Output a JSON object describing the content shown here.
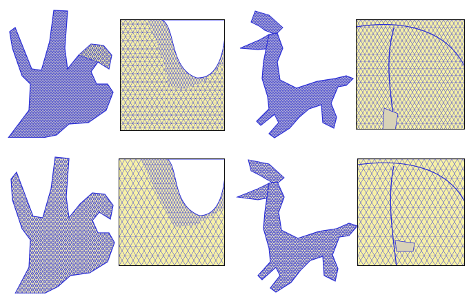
{
  "figure": {
    "rows": [
      {
        "row_id": "top",
        "panels": [
          {
            "subject": "hand",
            "view": "full-mesh"
          },
          {
            "subject": "hand",
            "view": "zoomed-mesh"
          },
          {
            "subject": "horse",
            "view": "full-mesh"
          },
          {
            "subject": "horse",
            "view": "zoomed-mesh"
          }
        ]
      },
      {
        "row_id": "bottom",
        "panels": [
          {
            "subject": "hand",
            "view": "full-mesh"
          },
          {
            "subject": "hand",
            "view": "zoomed-mesh"
          },
          {
            "subject": "horse",
            "view": "full-mesh"
          },
          {
            "subject": "horse",
            "view": "zoomed-mesh"
          }
        ]
      }
    ],
    "colors": {
      "mesh_fill": "#f5efa0",
      "mesh_edge": "#2b2fd6",
      "frame": "#111111",
      "background": "#ffffff"
    }
  }
}
